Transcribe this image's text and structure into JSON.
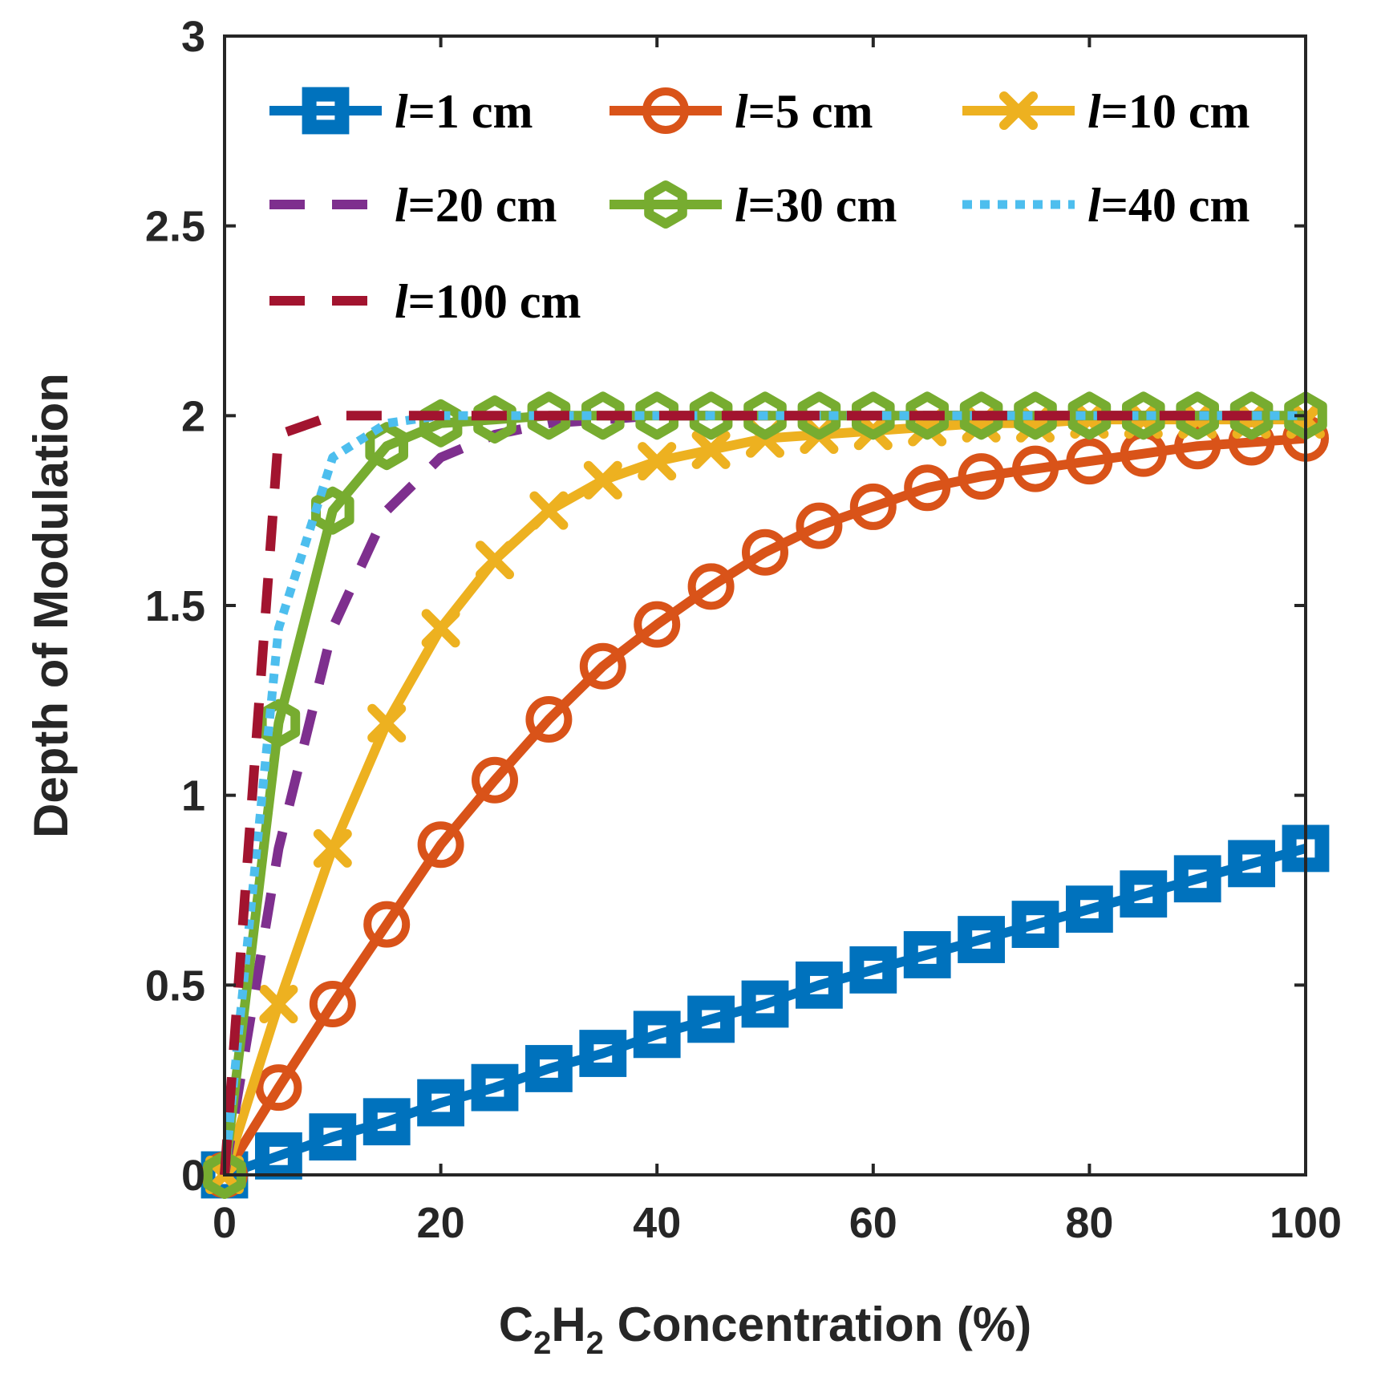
{
  "chart_data": {
    "type": "line",
    "title": "",
    "xlabel": {
      "main": "C",
      "sub1": "2",
      "mid": "H",
      "sub2": "2",
      "rest": " Concentration (%)"
    },
    "ylabel": "Depth of Modulation",
    "xlim": [
      0,
      100
    ],
    "ylim": [
      0,
      3
    ],
    "xticks": [
      0,
      20,
      40,
      60,
      80,
      100
    ],
    "yticks": [
      0,
      0.5,
      1,
      1.5,
      2,
      2.5,
      3
    ],
    "xtick_labels": [
      "0",
      "20",
      "40",
      "60",
      "80",
      "100"
    ],
    "ytick_labels": [
      "0",
      "0.5",
      "1",
      "1.5",
      "2",
      "2.5",
      "3"
    ],
    "grid": false,
    "legend_position": "top",
    "series": [
      {
        "name": "l=1 cm",
        "label_var": "l",
        "label_rest": "=1 cm",
        "color": "#0072BD",
        "style": "solid",
        "marker": "square",
        "x": [
          0,
          5,
          10,
          15,
          20,
          25,
          30,
          35,
          40,
          45,
          50,
          55,
          60,
          65,
          70,
          75,
          80,
          85,
          90,
          95,
          100
        ],
        "y": [
          0,
          0.05,
          0.1,
          0.14,
          0.19,
          0.23,
          0.28,
          0.32,
          0.37,
          0.41,
          0.45,
          0.5,
          0.54,
          0.58,
          0.62,
          0.66,
          0.7,
          0.74,
          0.78,
          0.82,
          0.86
        ]
      },
      {
        "name": "l=5 cm",
        "label_var": "l",
        "label_rest": "=5 cm",
        "color": "#D95319",
        "style": "solid",
        "marker": "circle",
        "x": [
          0,
          5,
          10,
          15,
          20,
          25,
          30,
          35,
          40,
          45,
          50,
          55,
          60,
          65,
          70,
          75,
          80,
          85,
          90,
          95,
          100
        ],
        "y": [
          0,
          0.23,
          0.45,
          0.66,
          0.87,
          1.04,
          1.2,
          1.34,
          1.45,
          1.55,
          1.64,
          1.71,
          1.76,
          1.81,
          1.84,
          1.86,
          1.88,
          1.9,
          1.92,
          1.93,
          1.94
        ]
      },
      {
        "name": "l=10 cm",
        "label_var": "l",
        "label_rest": "=10 cm",
        "color": "#EDB120",
        "style": "solid",
        "marker": "x",
        "x": [
          0,
          5,
          10,
          15,
          20,
          25,
          30,
          35,
          40,
          45,
          50,
          55,
          60,
          65,
          70,
          75,
          80,
          85,
          90,
          95,
          100
        ],
        "y": [
          0,
          0.45,
          0.86,
          1.19,
          1.44,
          1.62,
          1.75,
          1.83,
          1.88,
          1.91,
          1.94,
          1.95,
          1.96,
          1.97,
          1.98,
          1.98,
          1.99,
          1.99,
          1.99,
          1.99,
          1.99
        ]
      },
      {
        "name": "l=20 cm",
        "label_var": "l",
        "label_rest": "=20 cm",
        "color": "#7E2F8E",
        "style": "dashed",
        "marker": "none",
        "x": [
          0,
          5,
          10,
          15,
          20,
          25,
          30,
          35,
          40,
          45,
          50,
          55,
          60,
          65,
          70,
          75,
          80,
          85,
          90,
          95,
          100
        ],
        "y": [
          0,
          0.86,
          1.44,
          1.75,
          1.89,
          1.95,
          1.98,
          1.99,
          2.0,
          2.0,
          2.0,
          2.0,
          2.0,
          2.0,
          2.0,
          2.0,
          2.0,
          2.0,
          2.0,
          2.0,
          2.0
        ]
      },
      {
        "name": "l=30 cm",
        "label_var": "l",
        "label_rest": "=30 cm",
        "color": "#77AC30",
        "style": "solid",
        "marker": "hexagon",
        "x": [
          0,
          5,
          10,
          15,
          20,
          25,
          30,
          35,
          40,
          45,
          50,
          55,
          60,
          65,
          70,
          75,
          80,
          85,
          90,
          95,
          100
        ],
        "y": [
          0,
          1.19,
          1.75,
          1.92,
          1.98,
          1.99,
          2.0,
          2.0,
          2.0,
          2.0,
          2.0,
          2.0,
          2.0,
          2.0,
          2.0,
          2.0,
          2.0,
          2.0,
          2.0,
          2.0,
          2.0
        ]
      },
      {
        "name": "l=40 cm",
        "label_var": "l",
        "label_rest": "=40 cm",
        "color": "#4DBEEE",
        "style": "dotted",
        "marker": "none",
        "x": [
          0,
          5,
          10,
          15,
          20,
          25,
          30,
          35,
          40,
          45,
          50,
          55,
          60,
          65,
          70,
          75,
          80,
          85,
          90,
          95,
          100
        ],
        "y": [
          0,
          1.44,
          1.89,
          1.98,
          2.0,
          2.0,
          2.0,
          2.0,
          2.0,
          2.0,
          2.0,
          2.0,
          2.0,
          2.0,
          2.0,
          2.0,
          2.0,
          2.0,
          2.0,
          2.0,
          2.0
        ]
      },
      {
        "name": "l=100 cm",
        "label_var": "l",
        "label_rest": "=100 cm",
        "color": "#A2142F",
        "style": "dashed",
        "marker": "none",
        "x": [
          0,
          5,
          10,
          15,
          20,
          25,
          30,
          35,
          40,
          45,
          50,
          55,
          60,
          65,
          70,
          75,
          80,
          85,
          90,
          95
        ],
        "y": [
          0,
          1.95,
          2.0,
          2.0,
          2.0,
          2.0,
          2.0,
          2.0,
          2.0,
          2.0,
          2.0,
          2.0,
          2.0,
          2.0,
          2.0,
          2.0,
          2.0,
          2.0,
          2.0,
          2.0
        ]
      }
    ]
  }
}
